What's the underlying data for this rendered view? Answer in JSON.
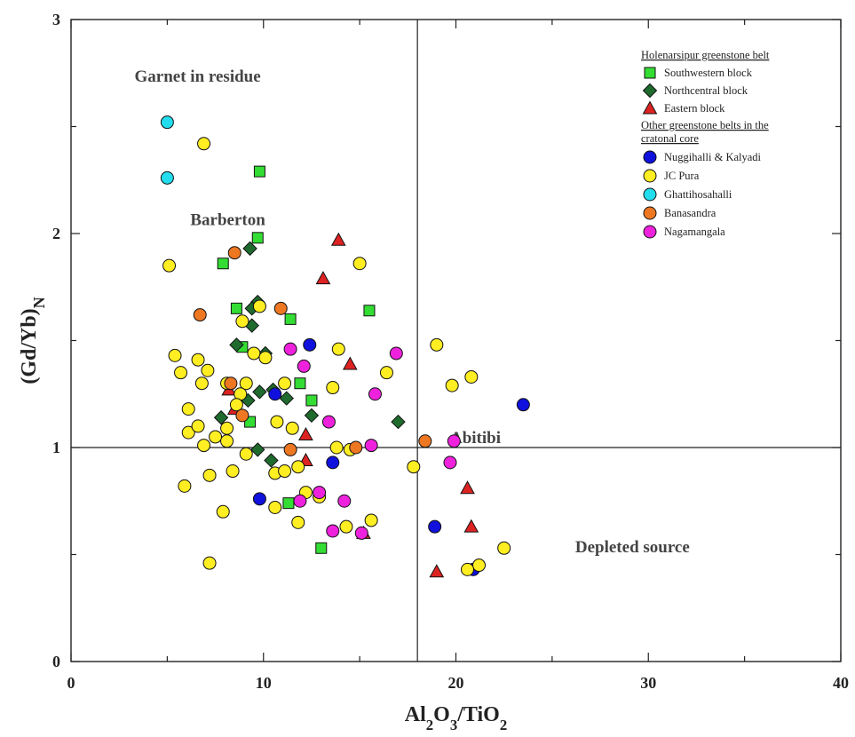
{
  "chart_data": {
    "type": "scatter",
    "xlabel": "Al2O3/TiO2",
    "ylabel": "(Gd/Yb)N",
    "xlim": [
      0,
      40
    ],
    "ylim": [
      0,
      3
    ],
    "x_ticks": [
      "0",
      "10",
      "20",
      "30",
      "40"
    ],
    "y_ticks": [
      "0",
      "1",
      "2",
      "3"
    ],
    "reference_lines": {
      "x": 18,
      "y": 1
    },
    "grid": false,
    "legend_position": "top-right",
    "annotations": [
      {
        "text": "Garnet in residue",
        "x": 3.3,
        "y": 2.71
      },
      {
        "text": "Barberton",
        "x": 6.2,
        "y": 2.04
      },
      {
        "text": "Abitibi",
        "x": 19.7,
        "y": 1.02
      },
      {
        "text": "Depleted source",
        "x": 26.2,
        "y": 0.51
      }
    ],
    "legend": {
      "headers": [
        "Holenarsipur greenstone belt",
        "Other greenstone belts in the",
        "cratonal core"
      ]
    },
    "series": [
      {
        "name": "Southwestern block",
        "marker": "square",
        "color": "#33dd33",
        "points": [
          [
            9.8,
            2.29
          ],
          [
            9.7,
            1.98
          ],
          [
            7.9,
            1.86
          ],
          [
            8.6,
            1.65
          ],
          [
            11.4,
            1.6
          ],
          [
            15.5,
            1.64
          ],
          [
            8.9,
            1.47
          ],
          [
            11.9,
            1.3
          ],
          [
            12.5,
            1.22
          ],
          [
            9.3,
            1.12
          ],
          [
            11.3,
            0.74
          ],
          [
            13.0,
            0.53
          ]
        ]
      },
      {
        "name": "Northcentral block",
        "marker": "diamond",
        "color": "#1f6b2e",
        "points": [
          [
            9.3,
            1.93
          ],
          [
            9.7,
            1.68
          ],
          [
            9.4,
            1.65
          ],
          [
            9.4,
            1.57
          ],
          [
            8.6,
            1.48
          ],
          [
            10.1,
            1.44
          ],
          [
            9.8,
            1.26
          ],
          [
            9.2,
            1.22
          ],
          [
            10.5,
            1.27
          ],
          [
            11.2,
            1.23
          ],
          [
            12.5,
            1.15
          ],
          [
            7.8,
            1.14
          ],
          [
            17.0,
            1.12
          ],
          [
            9.7,
            0.99
          ],
          [
            10.4,
            0.94
          ]
        ]
      },
      {
        "name": "Eastern block",
        "marker": "triangle",
        "color": "#dd2222",
        "points": [
          [
            13.9,
            1.97
          ],
          [
            13.1,
            1.79
          ],
          [
            14.5,
            1.39
          ],
          [
            8.2,
            1.27
          ],
          [
            8.5,
            1.18
          ],
          [
            12.2,
            1.06
          ],
          [
            20.6,
            0.81
          ],
          [
            20.8,
            0.63
          ],
          [
            19.0,
            0.42
          ],
          [
            12.2,
            0.94
          ],
          [
            15.2,
            0.6
          ]
        ]
      },
      {
        "name": "Nuggihalli & Kalyadi",
        "marker": "circle",
        "color": "#1111dd",
        "points": [
          [
            12.4,
            1.48
          ],
          [
            10.6,
            1.25
          ],
          [
            23.5,
            1.2
          ],
          [
            13.6,
            0.93
          ],
          [
            9.8,
            0.76
          ],
          [
            18.9,
            0.63
          ],
          [
            20.9,
            0.43
          ]
        ]
      },
      {
        "name": "JC Pura",
        "marker": "circle",
        "color": "#ffee22",
        "points": [
          [
            6.9,
            2.42
          ],
          [
            5.1,
            1.85
          ],
          [
            15.0,
            1.86
          ],
          [
            9.8,
            1.66
          ],
          [
            8.9,
            1.59
          ],
          [
            5.4,
            1.43
          ],
          [
            6.6,
            1.41
          ],
          [
            9.5,
            1.44
          ],
          [
            10.1,
            1.42
          ],
          [
            13.9,
            1.46
          ],
          [
            19.0,
            1.48
          ],
          [
            5.7,
            1.35
          ],
          [
            7.1,
            1.36
          ],
          [
            6.8,
            1.3
          ],
          [
            8.1,
            1.3
          ],
          [
            9.1,
            1.3
          ],
          [
            11.1,
            1.3
          ],
          [
            13.6,
            1.28
          ],
          [
            16.4,
            1.35
          ],
          [
            19.8,
            1.29
          ],
          [
            20.8,
            1.33
          ],
          [
            6.1,
            1.18
          ],
          [
            8.8,
            1.25
          ],
          [
            8.6,
            1.2
          ],
          [
            10.7,
            1.12
          ],
          [
            11.5,
            1.09
          ],
          [
            6.1,
            1.07
          ],
          [
            6.6,
            1.1
          ],
          [
            8.1,
            1.09
          ],
          [
            7.5,
            1.05
          ],
          [
            8.1,
            1.03
          ],
          [
            6.9,
            1.01
          ],
          [
            13.8,
            1.0
          ],
          [
            14.5,
            0.99
          ],
          [
            9.1,
            0.97
          ],
          [
            11.8,
            0.91
          ],
          [
            17.8,
            0.91
          ],
          [
            10.6,
            0.88
          ],
          [
            11.1,
            0.89
          ],
          [
            8.4,
            0.89
          ],
          [
            7.2,
            0.87
          ],
          [
            5.9,
            0.82
          ],
          [
            12.2,
            0.79
          ],
          [
            12.9,
            0.77
          ],
          [
            10.6,
            0.72
          ],
          [
            7.9,
            0.7
          ],
          [
            11.8,
            0.65
          ],
          [
            14.3,
            0.63
          ],
          [
            15.6,
            0.66
          ],
          [
            22.5,
            0.53
          ],
          [
            21.2,
            0.45
          ],
          [
            20.6,
            0.43
          ],
          [
            7.2,
            0.46
          ]
        ]
      },
      {
        "name": "Ghattihosahalli",
        "marker": "circle",
        "color": "#22ddee",
        "points": [
          [
            5.0,
            2.52
          ],
          [
            5.0,
            2.26
          ]
        ]
      },
      {
        "name": "Banasandra",
        "marker": "circle",
        "color": "#ee7722",
        "points": [
          [
            8.5,
            1.91
          ],
          [
            6.7,
            1.62
          ],
          [
            10.9,
            1.65
          ],
          [
            8.3,
            1.3
          ],
          [
            8.9,
            1.15
          ],
          [
            11.4,
            0.99
          ],
          [
            14.8,
            1.0
          ],
          [
            18.4,
            1.03
          ]
        ]
      },
      {
        "name": "Nagamangala",
        "marker": "circle",
        "color": "#ee22dd",
        "points": [
          [
            11.4,
            1.46
          ],
          [
            16.9,
            1.44
          ],
          [
            12.1,
            1.38
          ],
          [
            15.8,
            1.25
          ],
          [
            13.4,
            1.12
          ],
          [
            15.6,
            1.01
          ],
          [
            19.9,
            1.03
          ],
          [
            19.7,
            0.93
          ],
          [
            12.9,
            0.79
          ],
          [
            14.2,
            0.75
          ],
          [
            11.9,
            0.75
          ],
          [
            13.6,
            0.61
          ],
          [
            15.1,
            0.6
          ]
        ]
      }
    ]
  }
}
